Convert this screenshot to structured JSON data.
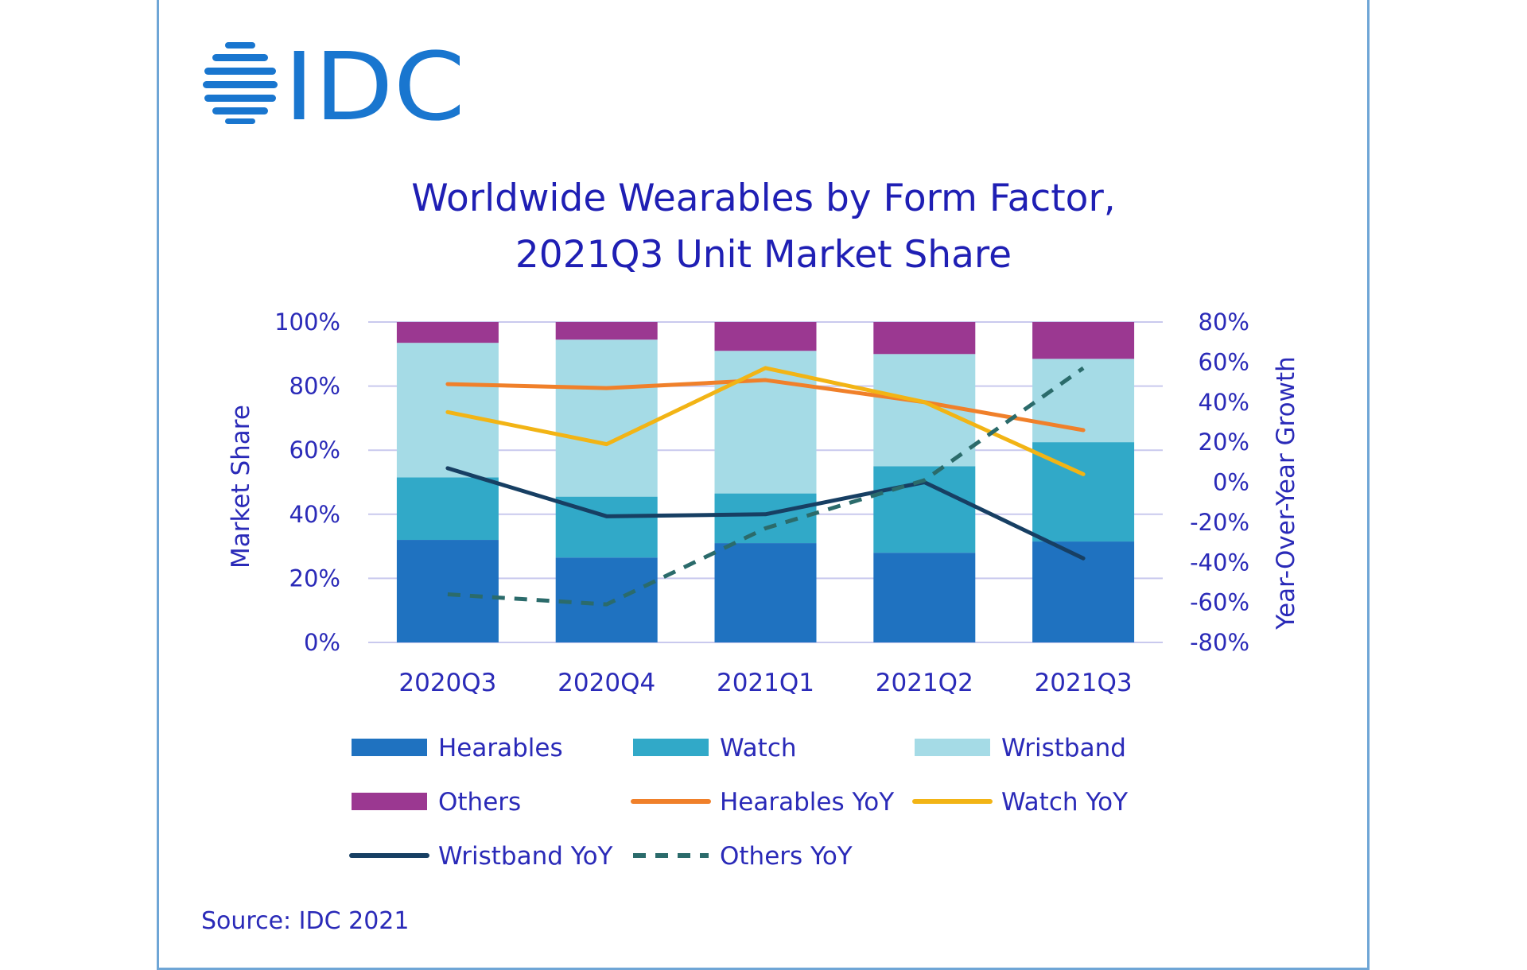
{
  "brand": {
    "logo_text": "IDC",
    "logo_color": "#1976cf"
  },
  "chart_data": {
    "type": "bar",
    "stacked": true,
    "title_lines": [
      "Worldwide Wearables by Form Factor,",
      "2021Q3 Unit Market Share"
    ],
    "categories": [
      "2020Q3",
      "2020Q4",
      "2021Q1",
      "2021Q2",
      "2021Q3"
    ],
    "ylabel": "Market Share",
    "y2label": "Year-Over-Year  Growth",
    "ylim": [
      0,
      100
    ],
    "y2lim": [
      -80,
      80
    ],
    "yticks": [
      "0%",
      "20%",
      "40%",
      "60%",
      "80%",
      "100%"
    ],
    "y2ticks": [
      "-80%",
      "-60%",
      "-40%",
      "-20%",
      "0%",
      "20%",
      "40%",
      "60%",
      "80%"
    ],
    "grid": true,
    "series": [
      {
        "name": "Hearables",
        "kind": "bar",
        "color": "#1f72c0",
        "values": [
          32,
          26.5,
          31,
          28,
          31.5
        ]
      },
      {
        "name": "Watch",
        "kind": "bar",
        "color": "#31a9c8",
        "values": [
          19.5,
          19,
          15.5,
          27,
          31
        ]
      },
      {
        "name": "Wristband",
        "kind": "bar",
        "color": "#a5dbe6",
        "values": [
          42,
          49,
          44.5,
          35,
          26
        ]
      },
      {
        "name": "Others",
        "kind": "bar",
        "color": "#9b3891",
        "values": [
          6.5,
          5.5,
          9,
          10,
          11.5
        ]
      },
      {
        "name": "Hearables YoY",
        "kind": "line",
        "axis": "right",
        "color": "#f0802a",
        "dash": false,
        "values": [
          49,
          47,
          51,
          40,
          26
        ]
      },
      {
        "name": "Watch YoY",
        "kind": "line",
        "axis": "right",
        "color": "#f2b415",
        "dash": false,
        "values": [
          35,
          19,
          57,
          40,
          4
        ]
      },
      {
        "name": "Wristband YoY",
        "kind": "line",
        "axis": "right",
        "color": "#173f63",
        "dash": false,
        "values": [
          7,
          -17,
          -16,
          0,
          -38
        ]
      },
      {
        "name": "Others YoY",
        "kind": "line",
        "axis": "right",
        "color": "#2b6b6b",
        "dash": true,
        "values": [
          -56,
          -61,
          -23,
          1,
          57
        ]
      }
    ],
    "legend_rows": [
      [
        "Hearables",
        "Watch",
        "Wristband"
      ],
      [
        "Others",
        "Hearables YoY",
        "Watch YoY"
      ],
      [
        "Wristband YoY",
        "Others YoY"
      ]
    ],
    "source": "Source: IDC 2021"
  }
}
